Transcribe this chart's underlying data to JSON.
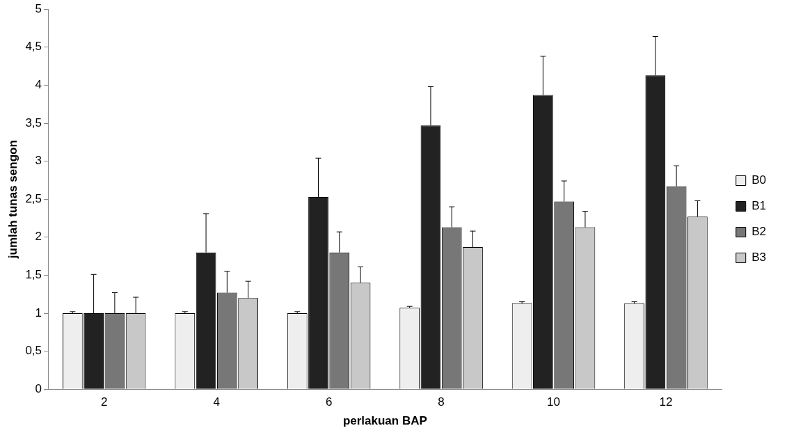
{
  "chart_data": {
    "type": "bar",
    "xlabel": "perlakuan BAP",
    "ylabel": "jumlah tunas sengon",
    "categories": [
      "2",
      "4",
      "6",
      "8",
      "10",
      "12"
    ],
    "series": [
      {
        "name": "B0",
        "color": "#eeeeee",
        "values": [
          1,
          1,
          1,
          1.07,
          1.13,
          1.13
        ],
        "errors": [
          [
            1,
            1.02
          ],
          [
            1,
            1.02
          ],
          [
            1,
            1.02
          ],
          [
            1.07,
            1.09
          ],
          [
            1.13,
            1.15
          ],
          [
            1.13,
            1.15
          ]
        ]
      },
      {
        "name": "B1",
        "color": "#222222",
        "values": [
          1,
          1.8,
          2.53,
          3.47,
          3.87,
          4.13
        ],
        "errors": [
          [
            1,
            1.51
          ],
          [
            1.8,
            2.31
          ],
          [
            2.53,
            3.04
          ],
          [
            3.47,
            3.98
          ],
          [
            3.87,
            4.38
          ],
          [
            4.13,
            4.64
          ]
        ]
      },
      {
        "name": "B2",
        "color": "#777777",
        "values": [
          1,
          1.27,
          1.8,
          2.13,
          2.47,
          2.67
        ],
        "errors": [
          [
            1,
            1.27
          ],
          [
            1.27,
            1.55
          ],
          [
            1.8,
            2.07
          ],
          [
            2.13,
            2.4
          ],
          [
            2.47,
            2.74
          ],
          [
            2.67,
            2.94
          ]
        ]
      },
      {
        "name": "B3",
        "color": "#c8c8c8",
        "values": [
          1,
          1.2,
          1.4,
          1.87,
          2.13,
          2.27
        ],
        "errors": [
          [
            1,
            1.21
          ],
          [
            1.2,
            1.42
          ],
          [
            1.4,
            1.61
          ],
          [
            1.87,
            2.08
          ],
          [
            2.13,
            2.34
          ],
          [
            2.27,
            2.48
          ]
        ]
      }
    ],
    "ylim": [
      0,
      5
    ],
    "yticks": [
      0,
      {
        "value": 0.5,
        "label": "0,5"
      },
      1,
      {
        "value": 1.5,
        "label": "1,5"
      },
      2,
      {
        "value": 2.5,
        "label": "2,5"
      },
      3,
      {
        "value": 3.5,
        "label": "3,5"
      },
      4,
      {
        "value": 4.5,
        "label": "4,5"
      },
      5
    ],
    "grid": false,
    "legend": "right"
  }
}
